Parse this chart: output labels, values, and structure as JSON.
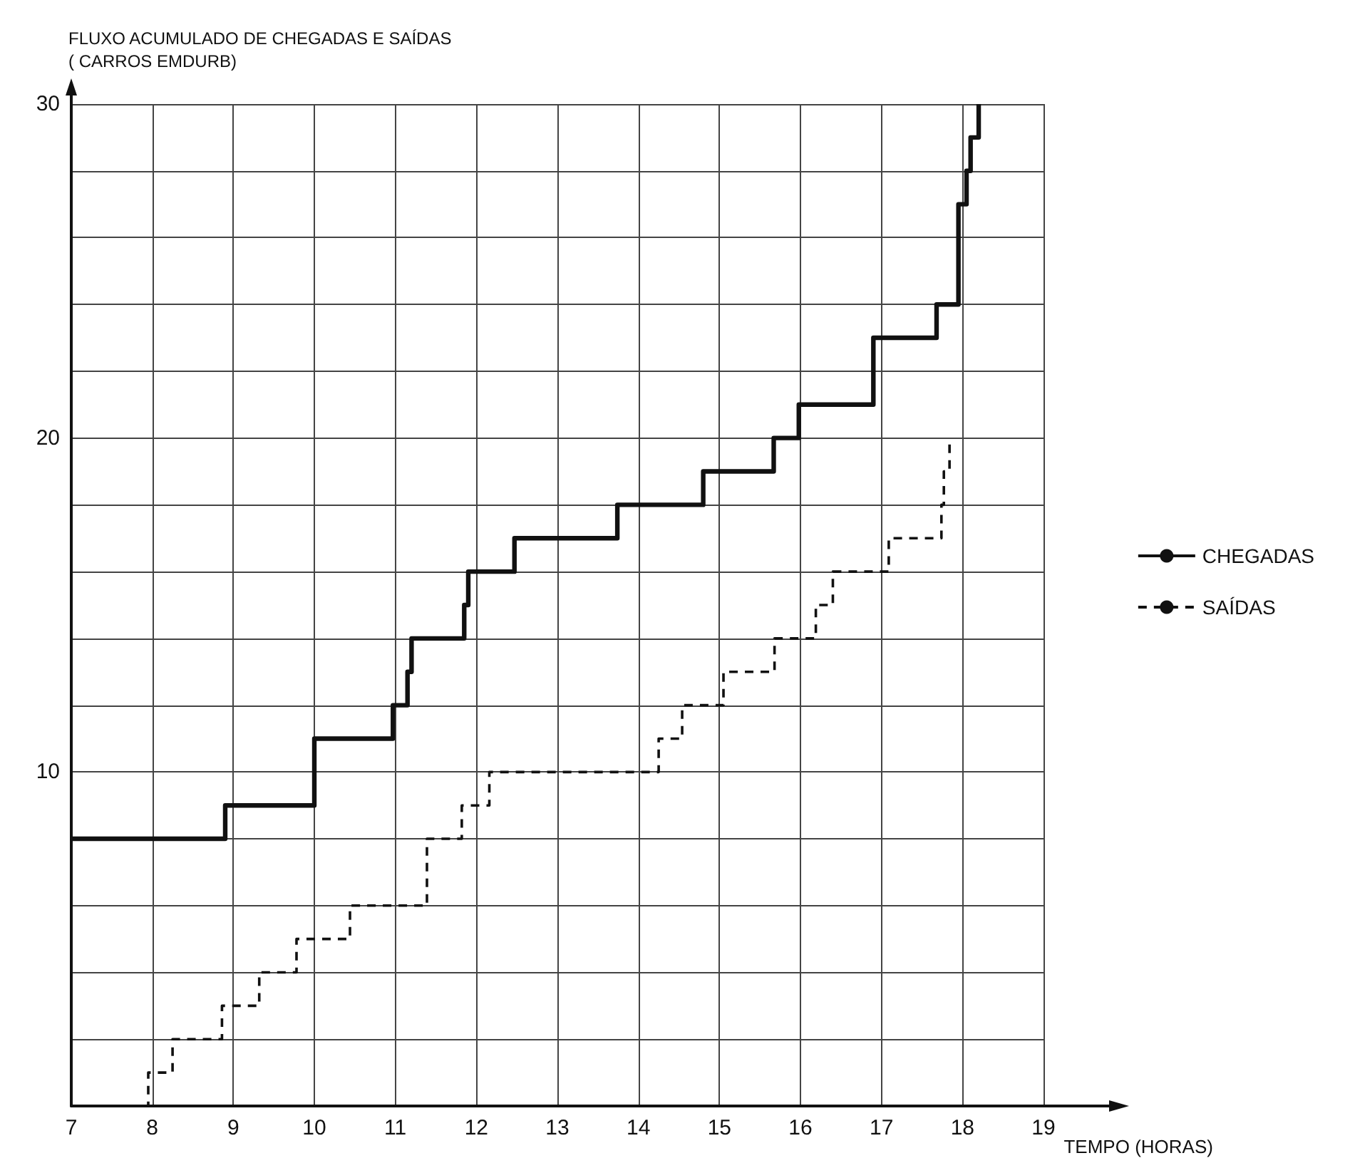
{
  "chart_data": {
    "type": "step",
    "ylabel": "FLUXO ACUMULADO DE CHEGADAS E SAÍDAS\n( CARROS EMDURB)",
    "xlabel": "TEMPO (HORAS)",
    "series": [
      {
        "name": "CHEGADAS",
        "color": "#111111",
        "line_style": "solid",
        "x": [
          7,
          8.9,
          10.0,
          10.97,
          11.15,
          11.2,
          11.85,
          11.9,
          12.47,
          13.74,
          14.8,
          15.67,
          15.98,
          16.9,
          17.68,
          17.95,
          18.05,
          18.1,
          18.2
        ],
        "values": [
          8,
          9,
          11,
          12,
          13,
          14,
          15,
          16,
          17,
          18,
          19,
          20,
          21,
          23,
          24,
          27,
          28,
          29,
          30
        ]
      },
      {
        "name": "SAÍDAS",
        "color": "#111111",
        "line_style": "dashed",
        "x": [
          7.9,
          7.95,
          8.25,
          8.86,
          9.32,
          9.78,
          10.44,
          11.39,
          11.82,
          12.16,
          14.25,
          14.54,
          15.05,
          15.68,
          16.19,
          16.4,
          17.09,
          17.74,
          17.77,
          17.84
        ],
        "values": [
          0,
          1,
          2,
          3,
          4,
          5,
          6,
          8,
          9,
          10,
          11,
          12,
          13,
          14,
          15,
          16,
          17,
          18,
          19,
          20
        ]
      }
    ],
    "xlim": [
      7,
      19
    ],
    "xticks": [
      7,
      8,
      9,
      10,
      11,
      12,
      13,
      14,
      15,
      16,
      17,
      18,
      19
    ],
    "ylim": [
      0,
      30
    ],
    "yticks": [
      {
        "value": 0,
        "label": null
      },
      {
        "value": 2,
        "label": null
      },
      {
        "value": 4,
        "label": null
      },
      {
        "value": 6,
        "label": null
      },
      {
        "value": 8,
        "label": null
      },
      10,
      {
        "value": 12,
        "label": null
      },
      {
        "value": 14,
        "label": null
      },
      {
        "value": 16,
        "label": null
      },
      {
        "value": 18,
        "label": null
      },
      20,
      {
        "value": 22,
        "label": null
      },
      {
        "value": 24,
        "label": null
      },
      {
        "value": 26,
        "label": null
      },
      {
        "value": 28,
        "label": null
      },
      30
    ],
    "grid": true,
    "legend": "right",
    "marker": "none"
  }
}
